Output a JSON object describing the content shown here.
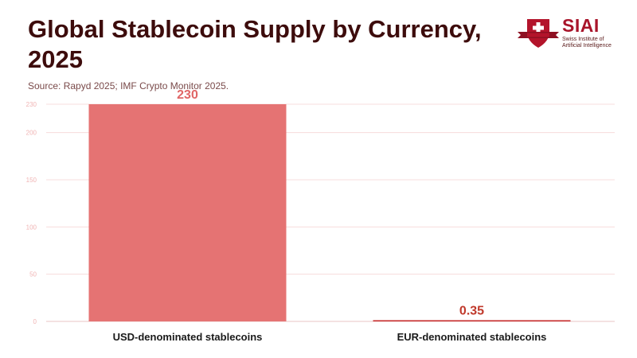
{
  "header": {
    "title": "Global Stablecoin Supply by Currency, 2025",
    "source": "Source: Rapyd 2025; IMF Crypto Monitor 2025."
  },
  "logo": {
    "name": "SIAI",
    "subtitle_line1": "Swiss Institute of",
    "subtitle_line2": "Artificial Intelligence"
  },
  "colors": {
    "usd_bar": "#e57373",
    "eur_bar": "#c62828",
    "usd_label": "#e06666",
    "eur_label": "#c0392b",
    "grid": "#f7dcdc",
    "tick": "#f0b4b4"
  },
  "chart_data": {
    "type": "bar",
    "title": "Global Stablecoin Supply by Currency, 2025",
    "categories": [
      "USD-denominated stablecoins",
      "EUR-denominated stablecoins"
    ],
    "values": [
      230,
      0.35
    ],
    "value_labels": [
      "230",
      "0.35"
    ],
    "xlabel": "",
    "ylabel": "",
    "ylim": [
      0,
      230
    ],
    "yticks": [
      0,
      50,
      100,
      150,
      200,
      230
    ],
    "grid": true,
    "legend": "none"
  }
}
